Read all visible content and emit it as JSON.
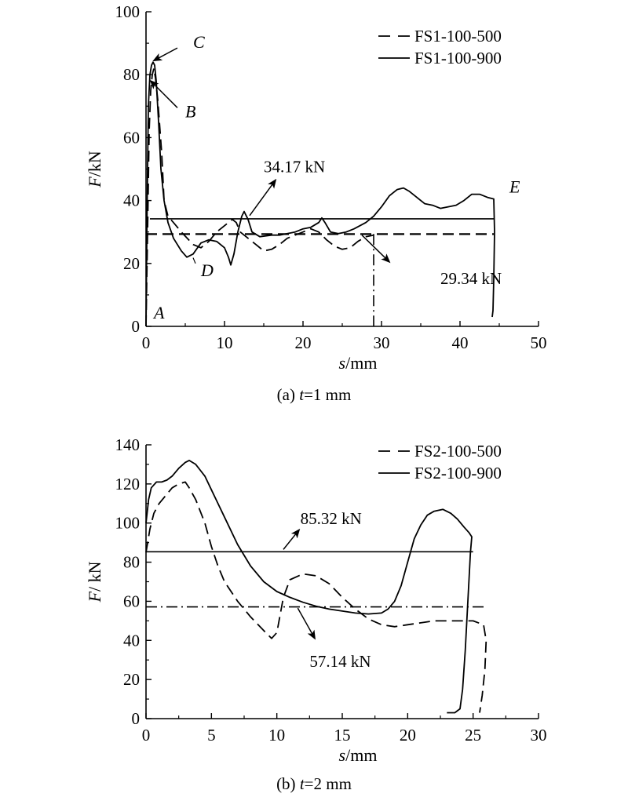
{
  "chart_data": [
    {
      "type": "line",
      "caption": {
        "prefix": "(a) ",
        "var": "t",
        "rest": "=1 mm"
      },
      "xlabel": {
        "var": "s",
        "unit": "/mm"
      },
      "ylabel": {
        "var": "F",
        "unit": "/kN"
      },
      "xlim": [
        0,
        50
      ],
      "ylim": [
        0,
        100
      ],
      "xticks": [
        0,
        10,
        20,
        30,
        40,
        50
      ],
      "yticks": [
        0,
        20,
        40,
        60,
        80,
        100
      ],
      "grid": false,
      "legend_position": "top-right",
      "series": [
        {
          "name": "FS1-100-500",
          "style": "dashed",
          "points": [
            [
              0,
              0
            ],
            [
              0.2,
              30
            ],
            [
              0.4,
              62
            ],
            [
              0.6,
              75
            ],
            [
              0.8,
              80
            ],
            [
              1.0,
              82
            ],
            [
              1.2,
              79
            ],
            [
              1.5,
              72
            ],
            [
              2.0,
              55
            ],
            [
              2.3,
              40
            ],
            [
              2.8,
              35
            ],
            [
              3.5,
              33
            ],
            [
              4.5,
              30
            ],
            [
              6,
              26
            ],
            [
              7,
              25
            ],
            [
              8,
              27
            ],
            [
              9,
              30
            ],
            [
              10,
              32
            ],
            [
              11,
              34
            ],
            [
              11.5,
              33
            ],
            [
              12,
              30
            ],
            [
              13,
              28
            ],
            [
              14,
              26
            ],
            [
              15,
              24
            ],
            [
              16,
              24.5
            ],
            [
              17,
              26
            ],
            [
              18,
              28
            ],
            [
              19,
              29
            ],
            [
              20,
              30
            ],
            [
              21,
              31
            ],
            [
              22,
              30
            ],
            [
              23,
              27.5
            ],
            [
              24,
              25.5
            ],
            [
              25,
              24.5
            ],
            [
              26,
              25
            ],
            [
              27,
              27
            ],
            [
              28,
              28.5
            ],
            [
              29,
              29
            ]
          ]
        },
        {
          "name": "FS1-100-900",
          "style": "solid",
          "points": [
            [
              0,
              0
            ],
            [
              0.15,
              40
            ],
            [
              0.3,
              70
            ],
            [
              0.5,
              80
            ],
            [
              0.7,
              83
            ],
            [
              0.9,
              84
            ],
            [
              1.1,
              83
            ],
            [
              1.3,
              78
            ],
            [
              1.6,
              65
            ],
            [
              1.9,
              50
            ],
            [
              2.3,
              40
            ],
            [
              2.8,
              33
            ],
            [
              3.5,
              28
            ],
            [
              4.5,
              24
            ],
            [
              5.2,
              22
            ],
            [
              6,
              23
            ],
            [
              7,
              26.5
            ],
            [
              8,
              27.5
            ],
            [
              9,
              27
            ],
            [
              10,
              25
            ],
            [
              10.5,
              22
            ],
            [
              10.8,
              19.5
            ],
            [
              11.2,
              23
            ],
            [
              11.7,
              30
            ],
            [
              12.2,
              35
            ],
            [
              12.5,
              36.5
            ],
            [
              13,
              34
            ],
            [
              13.5,
              30
            ],
            [
              14.5,
              28.5
            ],
            [
              16,
              29
            ],
            [
              17,
              29
            ],
            [
              18,
              29.5
            ],
            [
              19,
              30
            ],
            [
              20,
              31
            ],
            [
              21,
              31.5
            ],
            [
              22,
              33
            ],
            [
              22.4,
              34.5
            ],
            [
              22.8,
              33
            ],
            [
              23.5,
              30
            ],
            [
              24.5,
              29.5
            ],
            [
              25.5,
              30
            ],
            [
              26.5,
              31
            ],
            [
              28,
              33
            ],
            [
              29,
              35
            ],
            [
              30,
              38
            ],
            [
              31,
              41.5
            ],
            [
              32,
              43.5
            ],
            [
              32.8,
              44
            ],
            [
              33.5,
              43
            ],
            [
              34.5,
              41
            ],
            [
              35.5,
              39
            ],
            [
              36.5,
              38.5
            ],
            [
              37.5,
              37.5
            ],
            [
              38.5,
              38
            ],
            [
              39.5,
              38.5
            ],
            [
              40.5,
              40
            ],
            [
              41.5,
              42
            ],
            [
              42.5,
              42
            ],
            [
              43.5,
              41
            ],
            [
              44.3,
              40.5
            ],
            [
              44.4,
              30
            ],
            [
              44.3,
              15
            ],
            [
              44.2,
              5
            ],
            [
              44.1,
              3
            ]
          ]
        }
      ],
      "extra_lines": [
        {
          "style": "dashdot",
          "points": [
            [
              29,
              29.34
            ],
            [
              29,
              0
            ]
          ]
        }
      ],
      "ref_lines": [
        {
          "value": 34.17,
          "style": "solid",
          "x_range": [
            0.5,
            44.3
          ],
          "label": "34.17 kN"
        },
        {
          "value": 29.34,
          "style": "dashed",
          "x_range": [
            0,
            44.3
          ],
          "label": "29.34 kN"
        }
      ],
      "annotations": {
        "ref_labels": [
          {
            "text": "34.17 kN",
            "at": [
              15.0,
              49.0
            ],
            "arrow_from": [
              13.2,
              35.2
            ],
            "arrow_to": [
              16.5,
              46.5
            ]
          },
          {
            "text": "29.34 kN",
            "at": [
              37.5,
              13.5
            ],
            "arrow_from": [
              27.5,
              29.0
            ],
            "arrow_to": [
              31.0,
              20.5
            ]
          }
        ],
        "points": [
          {
            "text": "A",
            "at": [
              1.0,
              2.5
            ]
          },
          {
            "text": "B",
            "at": [
              5.0,
              66.5
            ]
          },
          {
            "text": "C",
            "at": [
              6.0,
              88.5
            ]
          },
          {
            "text": "D",
            "at": [
              7.0,
              16.0
            ],
            "arrow_from": [
              6.3,
              20.0
            ],
            "arrow_to": [
              6.0,
              21.8
            ]
          },
          {
            "text": "E",
            "at": [
              46.3,
              42.5
            ]
          }
        ],
        "point_arrows": [
          {
            "from": [
              4.0,
              88.5
            ],
            "to": [
              1.0,
              84.5
            ]
          },
          {
            "from": [
              4.0,
              69.5
            ],
            "to": [
              0.6,
              78.0
            ]
          }
        ]
      }
    },
    {
      "type": "line",
      "caption": {
        "prefix": "(b) ",
        "var": "t",
        "rest": "=2 mm"
      },
      "xlabel": {
        "var": "s",
        "unit": "/mm"
      },
      "ylabel": {
        "var": "F",
        "unit": "/ kN"
      },
      "xlim": [
        0,
        30
      ],
      "ylim": [
        0,
        140
      ],
      "xticks": [
        0,
        5,
        10,
        15,
        20,
        25,
        30
      ],
      "yticks": [
        0,
        20,
        40,
        60,
        80,
        100,
        120,
        140
      ],
      "grid": false,
      "legend_position": "top-right",
      "series": [
        {
          "name": "FS2-100-500",
          "style": "dashed",
          "points": [
            [
              0,
              85
            ],
            [
              0.3,
              97
            ],
            [
              0.6,
              105
            ],
            [
              1,
              110
            ],
            [
              1.5,
              114
            ],
            [
              2,
              118
            ],
            [
              2.5,
              120
            ],
            [
              3,
              121
            ],
            [
              3.3,
              118
            ],
            [
              3.8,
              112
            ],
            [
              4.5,
              100
            ],
            [
              5,
              88
            ],
            [
              5.5,
              78
            ],
            [
              6,
              70
            ],
            [
              7,
              60
            ],
            [
              8,
              52
            ],
            [
              9,
              45
            ],
            [
              9.6,
              41
            ],
            [
              10,
              44
            ],
            [
              10.5,
              62
            ],
            [
              11,
              71
            ],
            [
              12,
              74
            ],
            [
              13,
              73
            ],
            [
              14,
              69
            ],
            [
              15,
              62
            ],
            [
              16,
              56
            ],
            [
              17,
              51
            ],
            [
              18,
              48
            ],
            [
              19,
              47
            ],
            [
              20,
              48
            ],
            [
              21,
              49
            ],
            [
              22,
              50
            ],
            [
              23,
              50
            ],
            [
              24,
              50
            ],
            [
              25,
              50
            ],
            [
              25.8,
              48
            ],
            [
              26,
              40
            ],
            [
              25.9,
              25
            ],
            [
              25.7,
              12
            ],
            [
              25.5,
              3
            ]
          ]
        },
        {
          "name": "FS2-100-900",
          "style": "solid",
          "points": [
            [
              0,
              100
            ],
            [
              0.2,
              112
            ],
            [
              0.4,
              118
            ],
            [
              0.8,
              121
            ],
            [
              1.2,
              121
            ],
            [
              1.6,
              122
            ],
            [
              2.0,
              124
            ],
            [
              2.5,
              128
            ],
            [
              3,
              131
            ],
            [
              3.3,
              132
            ],
            [
              3.8,
              130
            ],
            [
              4.5,
              124
            ],
            [
              5,
              117
            ],
            [
              6,
              103
            ],
            [
              7,
              89
            ],
            [
              8,
              78
            ],
            [
              9,
              70
            ],
            [
              10,
              65
            ],
            [
              11,
              62
            ],
            [
              12,
              59.5
            ],
            [
              13,
              57.5
            ],
            [
              14,
              56
            ],
            [
              15,
              55
            ],
            [
              16,
              54
            ],
            [
              17,
              53.5
            ],
            [
              18,
              54
            ],
            [
              18.5,
              56
            ],
            [
              19,
              60
            ],
            [
              19.5,
              68
            ],
            [
              20,
              80
            ],
            [
              20.5,
              92
            ],
            [
              21,
              99
            ],
            [
              21.5,
              104
            ],
            [
              22,
              106
            ],
            [
              22.7,
              107
            ],
            [
              23.3,
              105
            ],
            [
              23.8,
              102
            ],
            [
              24.3,
              98
            ],
            [
              24.7,
              95
            ],
            [
              24.9,
              93
            ],
            [
              24.8,
              85
            ],
            [
              24.6,
              60
            ],
            [
              24.4,
              35
            ],
            [
              24.2,
              15
            ],
            [
              24.0,
              5
            ],
            [
              23.6,
              3
            ],
            [
              23.0,
              3
            ]
          ]
        }
      ],
      "extra_lines": [],
      "ref_lines": [
        {
          "value": 85.32,
          "style": "solid",
          "x_range": [
            0,
            25.0
          ],
          "label": "85.32 kN"
        },
        {
          "value": 57.14,
          "style": "dashdot",
          "x_range": [
            0,
            26.0
          ],
          "label": "57.14 kN"
        }
      ],
      "annotations": {
        "ref_labels": [
          {
            "text": "85.32 kN",
            "at": [
              11.8,
              99.5
            ],
            "arrow_from": [
              10.5,
              86.5
            ],
            "arrow_to": [
              11.7,
              96.5
            ]
          },
          {
            "text": "57.14 kN",
            "at": [
              12.5,
              26.5
            ],
            "arrow_from": [
              11.6,
              56.5
            ],
            "arrow_to": [
              12.9,
              41.0
            ]
          }
        ],
        "points": [],
        "point_arrows": []
      }
    }
  ]
}
